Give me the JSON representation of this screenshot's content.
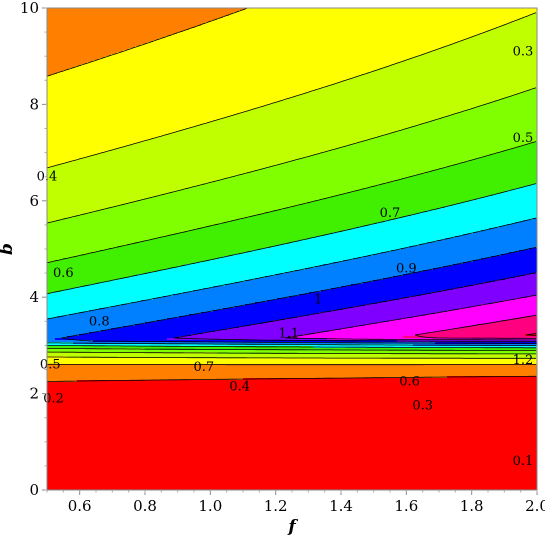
{
  "chart_data": {
    "type": "heatmap",
    "subtype": "filled contour plot",
    "xlabel": "f",
    "ylabel": "b",
    "xlim": [
      0.5,
      2.0
    ],
    "ylim": [
      0,
      10
    ],
    "x_ticks": [
      0.6,
      0.8,
      1.0,
      1.2,
      1.4,
      1.6,
      1.8,
      2.0
    ],
    "x_tick_labels": [
      "0.6",
      "0.8",
      "1.0",
      "1.2",
      "1.4",
      "1.6",
      "1.8",
      "2.0"
    ],
    "y_ticks": [
      0,
      2,
      4,
      6,
      8,
      10
    ],
    "y_tick_labels": [
      "0",
      "2",
      "4",
      "6",
      "8",
      "10"
    ],
    "grid": false,
    "legend": "none",
    "contour_levels": [
      0.1,
      0.2,
      0.3,
      0.4,
      0.5,
      0.6,
      0.7,
      0.8,
      0.9,
      1.0,
      1.1,
      1.2
    ],
    "band_colors": [
      "#ff0000",
      "#ff8000",
      "#ffff00",
      "#bfff00",
      "#80ff00",
      "#40f000",
      "#00ffff",
      "#0080ff",
      "#0000ff",
      "#8000ff",
      "#ff00ff",
      "#ff0080",
      "#ff0000"
    ],
    "contour_labels": [
      {
        "text": "0.1",
        "x": 1.98,
        "y": 0.6
      },
      {
        "text": "0.2",
        "x": 0.52,
        "y": 1.9
      },
      {
        "text": "0.3",
        "x": 1.65,
        "y": 1.75
      },
      {
        "text": "0.3",
        "x": 1.98,
        "y": 9.1
      },
      {
        "text": "0.4",
        "x": 1.09,
        "y": 2.15
      },
      {
        "text": "0.4",
        "x": 0.5,
        "y": 6.5
      },
      {
        "text": "0.5",
        "x": 0.51,
        "y": 2.6
      },
      {
        "text": "0.5",
        "x": 1.98,
        "y": 7.3
      },
      {
        "text": "0.6",
        "x": 1.61,
        "y": 2.25
      },
      {
        "text": "0.6",
        "x": 0.55,
        "y": 4.5
      },
      {
        "text": "0.7",
        "x": 0.98,
        "y": 2.55
      },
      {
        "text": "0.7",
        "x": 1.55,
        "y": 5.75
      },
      {
        "text": "0.8",
        "x": 0.66,
        "y": 3.5
      },
      {
        "text": "0.9",
        "x": 1.6,
        "y": 4.6
      },
      {
        "text": "1",
        "x": 1.33,
        "y": 3.95
      },
      {
        "text": "1.1",
        "x": 1.24,
        "y": 3.25
      },
      {
        "text": "1.2",
        "x": 1.98,
        "y": 2.7
      }
    ]
  }
}
